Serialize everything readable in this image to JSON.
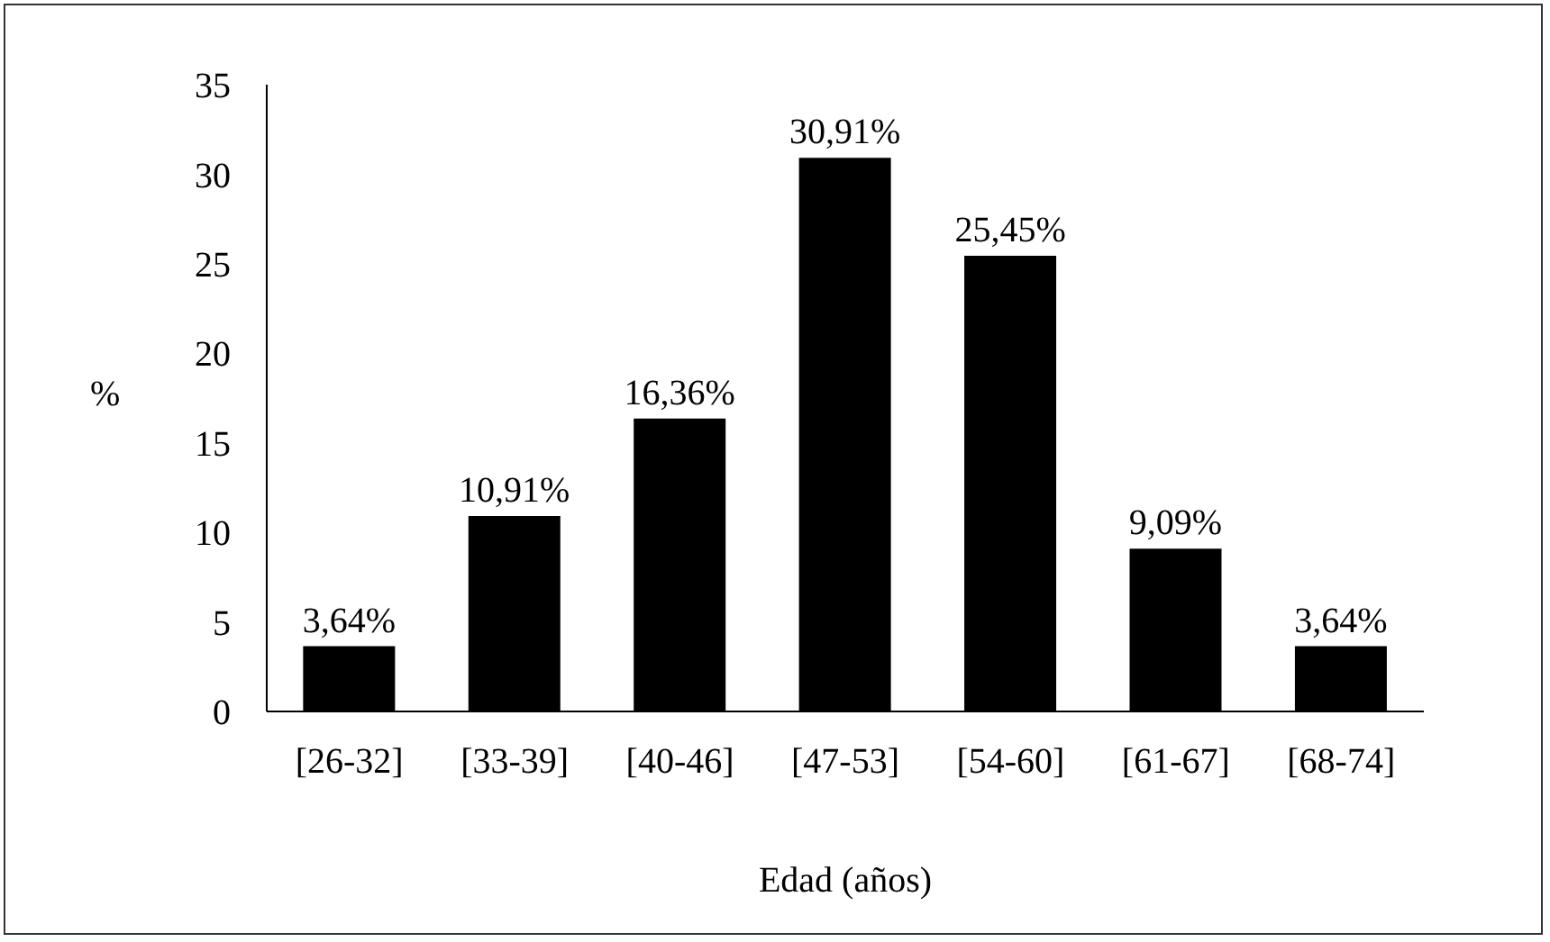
{
  "chart_data": {
    "type": "bar",
    "xlabel": "Edad (años)",
    "ylabel": "%",
    "categories": [
      "[26-32]",
      "[33-39]",
      "[40-46]",
      "[47-53]",
      "[54-60]",
      "[61-67]",
      "[68-74]"
    ],
    "values": [
      3.64,
      10.91,
      16.36,
      30.91,
      25.45,
      9.09,
      3.64
    ],
    "value_labels": [
      "3,64%",
      "10,91%",
      "16,36%",
      "30,91%",
      "25,45%",
      "9,09%",
      "3,64%"
    ],
    "color": "#000000",
    "ylim": [
      0,
      35
    ],
    "yticks": [
      0,
      5,
      10,
      15,
      20,
      25,
      30,
      35
    ],
    "grid": false,
    "legend": false
  }
}
